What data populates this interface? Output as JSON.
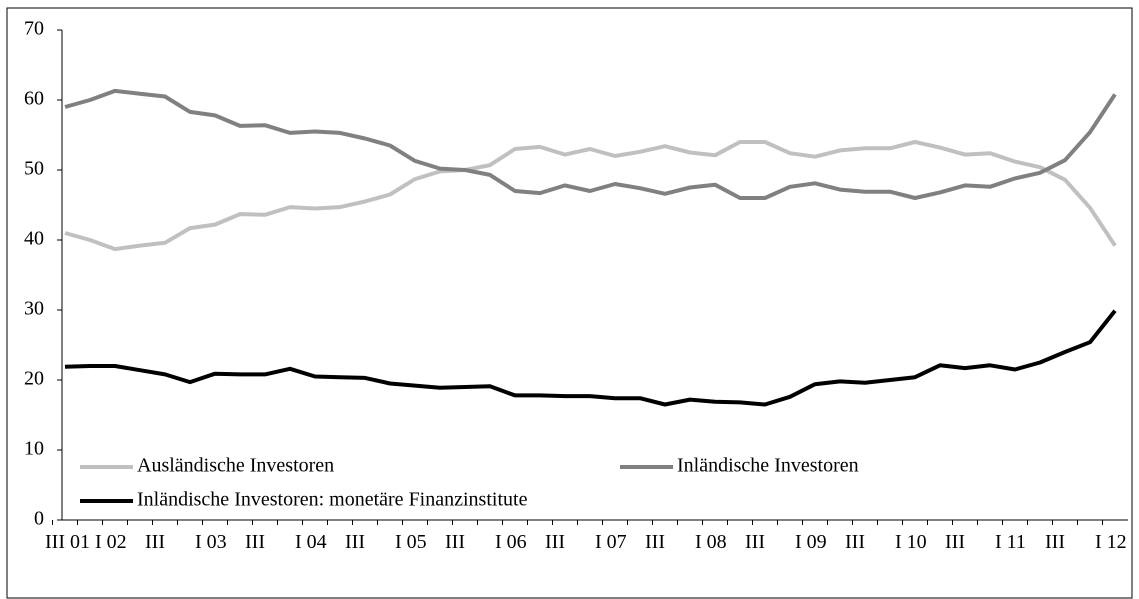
{
  "chart_data": {
    "type": "line",
    "categories": [
      "III 01",
      null,
      "I 02",
      null,
      "III",
      null,
      "I 03",
      null,
      "III",
      null,
      "I 04",
      null,
      "III",
      null,
      "I 05",
      null,
      "III",
      null,
      "I 06",
      null,
      "III",
      null,
      "I 07",
      null,
      "III",
      null,
      "I 08",
      null,
      "III",
      null,
      "I 09",
      null,
      "III",
      null,
      "I 10",
      null,
      "III",
      null,
      "I 11",
      null,
      "III",
      null,
      "I 12"
    ],
    "series": [
      {
        "name": "Ausländische Investoren",
        "color": "#c0c0c0",
        "values": [
          41,
          40,
          38.7,
          39.2,
          39.6,
          41.7,
          42.2,
          43.7,
          43.6,
          44.7,
          44.5,
          44.7,
          45.5,
          46.5,
          48.7,
          49.8,
          50,
          50.7,
          53,
          53.3,
          52.2,
          53,
          52,
          52.6,
          53.4,
          52.5,
          52.1,
          54,
          54,
          52.4,
          51.9,
          52.8,
          53.1,
          53.1,
          54,
          53.2,
          52.2,
          52.4,
          51.2,
          50.4,
          48.6,
          44.6,
          39.2
        ]
      },
      {
        "name": "Inländische Investoren",
        "color": "#808080",
        "values": [
          59,
          60,
          61.3,
          60.9,
          60.5,
          58.3,
          57.8,
          56.3,
          56.4,
          55.3,
          55.5,
          55.3,
          54.5,
          53.5,
          51.3,
          50.2,
          50,
          49.3,
          47,
          46.7,
          47.8,
          47,
          48,
          47.4,
          46.6,
          47.5,
          47.9,
          46,
          46,
          47.6,
          48.1,
          47.2,
          46.9,
          46.9,
          46,
          46.8,
          47.8,
          47.6,
          48.8,
          49.6,
          51.4,
          55.4,
          60.8
        ]
      },
      {
        "name": "Inländische Investoren: monetäre Finanzinstitute",
        "color": "#000000",
        "values": [
          21.9,
          22,
          22,
          21.4,
          20.8,
          19.7,
          20.9,
          20.8,
          20.8,
          21.6,
          20.5,
          20.4,
          20.3,
          19.5,
          19.2,
          18.9,
          19,
          19.1,
          17.8,
          17.8,
          17.7,
          17.7,
          17.4,
          17.4,
          16.5,
          17.2,
          16.9,
          16.8,
          16.5,
          17.6,
          19.4,
          19.8,
          19.6,
          20,
          20.4,
          22.1,
          21.7,
          22.1,
          21.5,
          22.5,
          24,
          25.4,
          29.9
        ]
      }
    ],
    "ylim": [
      0,
      70
    ],
    "yticks": [
      0,
      10,
      20,
      30,
      40,
      50,
      60,
      70
    ]
  }
}
